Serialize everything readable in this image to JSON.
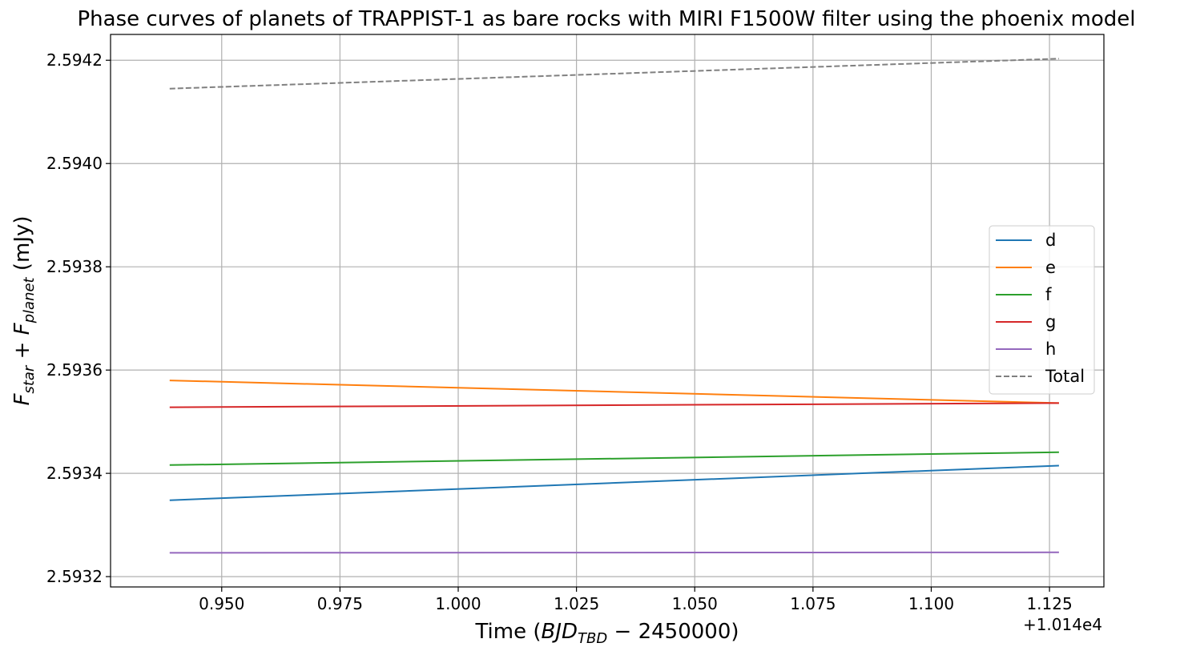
{
  "chart_data": {
    "type": "line",
    "title": "Phase curves of planets of TRAPPIST-1 as bare rocks with MIRI F1500W filter using the phoenix model",
    "xlabel": "Time (BJD_TBD − 2450000)",
    "xlabel_parts": {
      "prefix": "Time (",
      "main": "BJD",
      "sub": "TBD",
      "suffix": " − 2450000)"
    },
    "ylabel": "F_star + F_planet (mJy)",
    "ylabel_parts": {
      "f1": "F",
      "s1": "star",
      "plus": " + ",
      "f2": "F",
      "s2": "planet",
      "unit": " (mJy)"
    },
    "x_offset_label": "+1.014e4",
    "xlim": [
      0.9265,
      1.1365
    ],
    "ylim": [
      2.59318,
      2.59425
    ],
    "x_ticks": [
      0.95,
      0.975,
      1.0,
      1.025,
      1.05,
      1.075,
      1.1,
      1.125
    ],
    "x_tick_labels": [
      "0.950",
      "0.975",
      "1.000",
      "1.025",
      "1.050",
      "1.075",
      "1.100",
      "1.125"
    ],
    "y_ticks": [
      2.5932,
      2.5934,
      2.5936,
      2.5938,
      2.594,
      2.5942
    ],
    "y_tick_labels": [
      "2.5932",
      "2.5934",
      "2.5936",
      "2.5938",
      "2.5940",
      "2.5942"
    ],
    "grid": true,
    "legend_position": "center-right",
    "series": [
      {
        "name": "d",
        "color": "#1f77b4",
        "style": "solid",
        "x": [
          0.939,
          1.127
        ],
        "y": [
          2.593348,
          2.593415
        ]
      },
      {
        "name": "e",
        "color": "#ff7f0e",
        "style": "solid",
        "x": [
          0.939,
          1.127
        ],
        "y": [
          2.59358,
          2.593536
        ]
      },
      {
        "name": "f",
        "color": "#2ca02c",
        "style": "solid",
        "x": [
          0.939,
          1.127
        ],
        "y": [
          2.593416,
          2.593441
        ]
      },
      {
        "name": "g",
        "color": "#d62728",
        "style": "solid",
        "x": [
          0.939,
          1.127
        ],
        "y": [
          2.593528,
          2.593536
        ]
      },
      {
        "name": "h",
        "color": "#9467bd",
        "style": "solid",
        "x": [
          0.939,
          1.127
        ],
        "y": [
          2.593246,
          2.593247
        ]
      },
      {
        "name": "Total",
        "color": "#808080",
        "style": "dashed",
        "x": [
          0.939,
          1.127
        ],
        "y": [
          2.594145,
          2.594203
        ]
      }
    ]
  }
}
